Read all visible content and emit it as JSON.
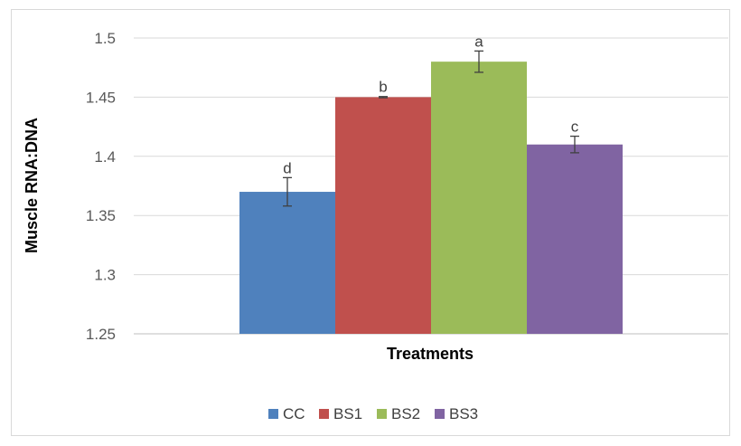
{
  "chart_data": {
    "type": "bar",
    "xlabel": "Treatments",
    "ylabel": "Muscle RNA:DNA",
    "ylim": [
      1.25,
      1.5
    ],
    "yticks": [
      "1.25",
      "1.3",
      "1.35",
      "1.4",
      "1.45",
      "1.5"
    ],
    "ytick_values": [
      1.25,
      1.3,
      1.35,
      1.4,
      1.45,
      1.5
    ],
    "grid": true,
    "legend_position": "bottom",
    "series": [
      {
        "name": "CC",
        "value": 1.37,
        "error": 0.012,
        "label": "d",
        "color": "#4f81bd"
      },
      {
        "name": "BS1",
        "value": 1.45,
        "error": 0.0005,
        "label": "b",
        "color": "#c0504d"
      },
      {
        "name": "BS2",
        "value": 1.48,
        "error": 0.009,
        "label": "a",
        "color": "#9bbb59"
      },
      {
        "name": "BS3",
        "value": 1.41,
        "error": 0.007,
        "label": "c",
        "color": "#8064a2"
      }
    ]
  }
}
